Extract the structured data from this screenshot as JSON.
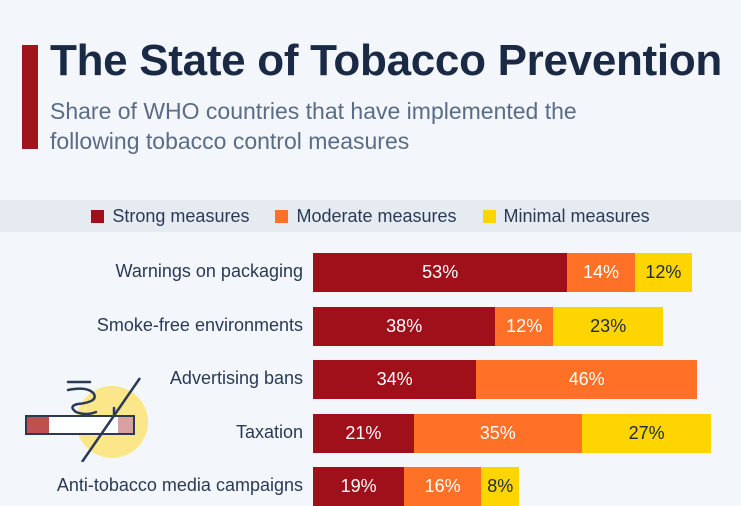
{
  "header": {
    "title": "The State of Tobacco Prevention",
    "subtitle": "Share of WHO countries that have implemented the following tobacco control measures"
  },
  "chart_data": {
    "type": "bar",
    "orientation": "horizontal",
    "stacked": true,
    "categories": [
      "Warnings on packaging",
      "Smoke-free environments",
      "Advertising bans",
      "Taxation",
      "Anti-tobacco media campaigns"
    ],
    "series": [
      {
        "name": "Strong measures",
        "color": "#a0101a",
        "text_color": "#ffffff",
        "values": [
          53,
          38,
          34,
          21,
          19
        ],
        "labels": [
          "53%",
          "38%",
          "34%",
          "21%",
          "19%"
        ]
      },
      {
        "name": "Moderate measures",
        "color": "#ff7126",
        "text_color": "#ffffff",
        "values": [
          14,
          12,
          46,
          35,
          16
        ],
        "labels": [
          "14%",
          "12%",
          "46%",
          "35%",
          "16%"
        ]
      },
      {
        "name": "Minimal measures",
        "color": "#ffd500",
        "text_color": "#1a2a45",
        "values": [
          12,
          23,
          0,
          27,
          8
        ],
        "labels": [
          "12%",
          "23%",
          "",
          "27%",
          "8%"
        ]
      }
    ],
    "legend_position": "top",
    "grid": false,
    "unit": "%"
  },
  "icons": {
    "illustration": "no-smoking-icon"
  }
}
